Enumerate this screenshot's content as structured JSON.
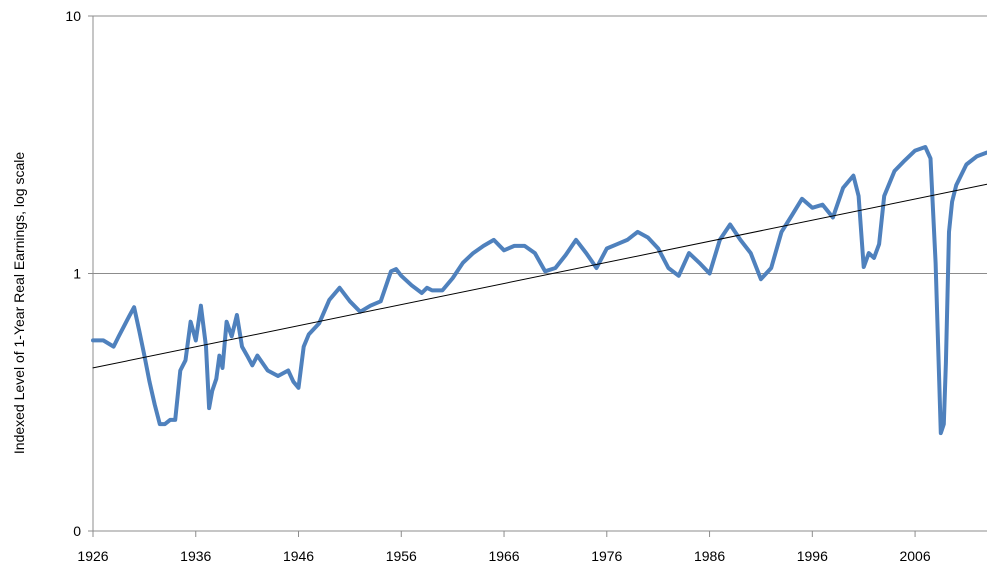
{
  "chart_data": {
    "type": "line",
    "ylabel": "Indexed Level of 1-Year Real Earnings, log scale",
    "xlabel": "",
    "title": "",
    "y_scale": "log",
    "ylim": [
      0.1,
      10
    ],
    "xlim": [
      1926,
      2013
    ],
    "grid": true,
    "legend": "none",
    "y_ticks": [
      {
        "value": 10,
        "label": "10"
      },
      {
        "value": 1,
        "label": "1"
      },
      {
        "value": 0.1,
        "label": "0"
      }
    ],
    "x_ticks": [
      {
        "value": 1926,
        "label": "1926"
      },
      {
        "value": 1936,
        "label": "1936"
      },
      {
        "value": 1946,
        "label": "1946"
      },
      {
        "value": 1956,
        "label": "1956"
      },
      {
        "value": 1966,
        "label": "1966"
      },
      {
        "value": 1976,
        "label": "1976"
      },
      {
        "value": 1986,
        "label": "1986"
      },
      {
        "value": 1996,
        "label": "1996"
      },
      {
        "value": 2006,
        "label": "2006"
      }
    ],
    "colors": {
      "series": "#4f81bd",
      "trend": "#000000",
      "grid": "#8c8c8c",
      "axis": "#8c8c8c"
    },
    "series": [
      {
        "style": "earnings",
        "x": [
          1926.0,
          1927.0,
          1928.0,
          1928.5,
          1929.5,
          1930.0,
          1930.5,
          1931.0,
          1931.5,
          1932.0,
          1932.5,
          1933.0,
          1933.5,
          1934.0,
          1934.5,
          1935.0,
          1935.5,
          1936.0,
          1936.5,
          1937.0,
          1937.3,
          1937.6,
          1938.0,
          1938.3,
          1938.6,
          1939.0,
          1939.5,
          1940.0,
          1940.5,
          1941.0,
          1941.5,
          1942.0,
          1943.0,
          1944.0,
          1945.0,
          1945.5,
          1946.0,
          1946.5,
          1947.0,
          1948.0,
          1949.0,
          1950.0,
          1951.0,
          1952.0,
          1953.0,
          1954.0,
          1955.0,
          1955.5,
          1956.0,
          1957.0,
          1958.0,
          1958.5,
          1959.0,
          1960.0,
          1961.0,
          1962.0,
          1963.0,
          1964.0,
          1965.0,
          1966.0,
          1967.0,
          1968.0,
          1969.0,
          1970.0,
          1971.0,
          1972.0,
          1973.0,
          1974.0,
          1975.0,
          1976.0,
          1977.0,
          1978.0,
          1979.0,
          1980.0,
          1981.0,
          1982.0,
          1983.0,
          1984.0,
          1985.0,
          1986.0,
          1987.0,
          1988.0,
          1989.0,
          1990.0,
          1991.0,
          1992.0,
          1993.0,
          1994.0,
          1995.0,
          1996.0,
          1997.0,
          1998.0,
          1999.0,
          2000.0,
          2000.5,
          2001.0,
          2001.5,
          2002.0,
          2002.5,
          2003.0,
          2004.0,
          2005.0,
          2006.0,
          2007.0,
          2007.5,
          2008.0,
          2008.5,
          2008.8,
          2009.0,
          2009.3,
          2009.6,
          2010.0,
          2011.0,
          2012.0,
          2013.0
        ],
        "y": [
          0.55,
          0.55,
          0.52,
          0.57,
          0.68,
          0.74,
          0.6,
          0.48,
          0.38,
          0.31,
          0.26,
          0.26,
          0.27,
          0.27,
          0.42,
          0.46,
          0.65,
          0.55,
          0.75,
          0.52,
          0.3,
          0.35,
          0.39,
          0.48,
          0.43,
          0.65,
          0.57,
          0.69,
          0.52,
          0.48,
          0.44,
          0.48,
          0.42,
          0.4,
          0.42,
          0.38,
          0.36,
          0.52,
          0.58,
          0.64,
          0.79,
          0.88,
          0.78,
          0.71,
          0.75,
          0.78,
          1.02,
          1.04,
          0.98,
          0.9,
          0.84,
          0.88,
          0.86,
          0.86,
          0.96,
          1.1,
          1.2,
          1.28,
          1.35,
          1.23,
          1.28,
          1.28,
          1.2,
          1.02,
          1.05,
          1.18,
          1.35,
          1.2,
          1.05,
          1.25,
          1.3,
          1.35,
          1.45,
          1.38,
          1.25,
          1.05,
          0.98,
          1.2,
          1.1,
          1.0,
          1.35,
          1.55,
          1.35,
          1.2,
          0.95,
          1.05,
          1.45,
          1.68,
          1.95,
          1.8,
          1.85,
          1.65,
          2.15,
          2.4,
          2.0,
          1.06,
          1.2,
          1.15,
          1.3,
          2.0,
          2.5,
          2.75,
          3.0,
          3.1,
          2.8,
          1.1,
          0.24,
          0.26,
          0.45,
          1.45,
          1.9,
          2.2,
          2.65,
          2.85,
          2.95
        ]
      },
      {
        "style": "trend",
        "x": [
          1926,
          2013
        ],
        "y": [
          0.43,
          2.22
        ]
      }
    ]
  }
}
